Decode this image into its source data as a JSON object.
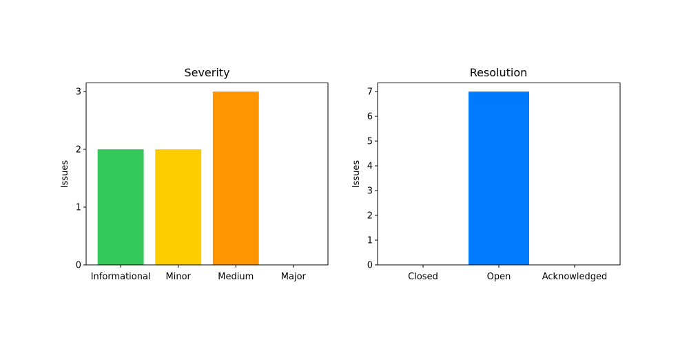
{
  "chart_data": [
    {
      "type": "bar",
      "title": "Severity",
      "xlabel": "",
      "ylabel": "Issues",
      "categories": [
        "Informational",
        "Minor",
        "Medium",
        "Major"
      ],
      "values": [
        2,
        2,
        3,
        0
      ],
      "colors": [
        "#34c759",
        "#ffcc00",
        "#ff9500",
        "#ff3b30"
      ],
      "ylim": [
        0,
        3.15
      ],
      "yticks": [
        "0",
        "1",
        "2",
        "3"
      ],
      "grid": false,
      "legend": "none"
    },
    {
      "type": "bar",
      "title": "Resolution",
      "xlabel": "",
      "ylabel": "Issues",
      "categories": [
        "Closed",
        "Open",
        "Acknowledged"
      ],
      "values": [
        0,
        7,
        0
      ],
      "colors": [
        "#34c759",
        "#007aff",
        "#5856d6"
      ],
      "ylim": [
        0,
        7.35
      ],
      "yticks": [
        "0",
        "1",
        "2",
        "3",
        "4",
        "5",
        "6",
        "7"
      ],
      "grid": false,
      "legend": "none"
    }
  ]
}
